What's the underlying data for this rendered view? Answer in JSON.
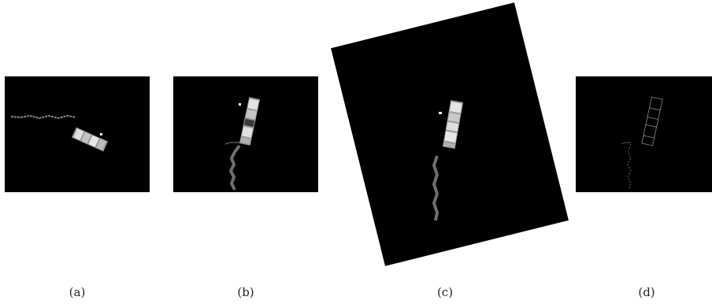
{
  "figure": {
    "panels": [
      {
        "id": "a",
        "caption": "(a)"
      },
      {
        "id": "b",
        "caption": "(b)"
      },
      {
        "id": "c",
        "caption": "(c)"
      },
      {
        "id": "d",
        "caption": "(d)"
      }
    ],
    "colors": {
      "background": "#ffffff",
      "panel": "#000000",
      "module_light": "#d9d9d9",
      "module_mid": "#9a9a9a",
      "truss": "#6e6e6e"
    }
  }
}
